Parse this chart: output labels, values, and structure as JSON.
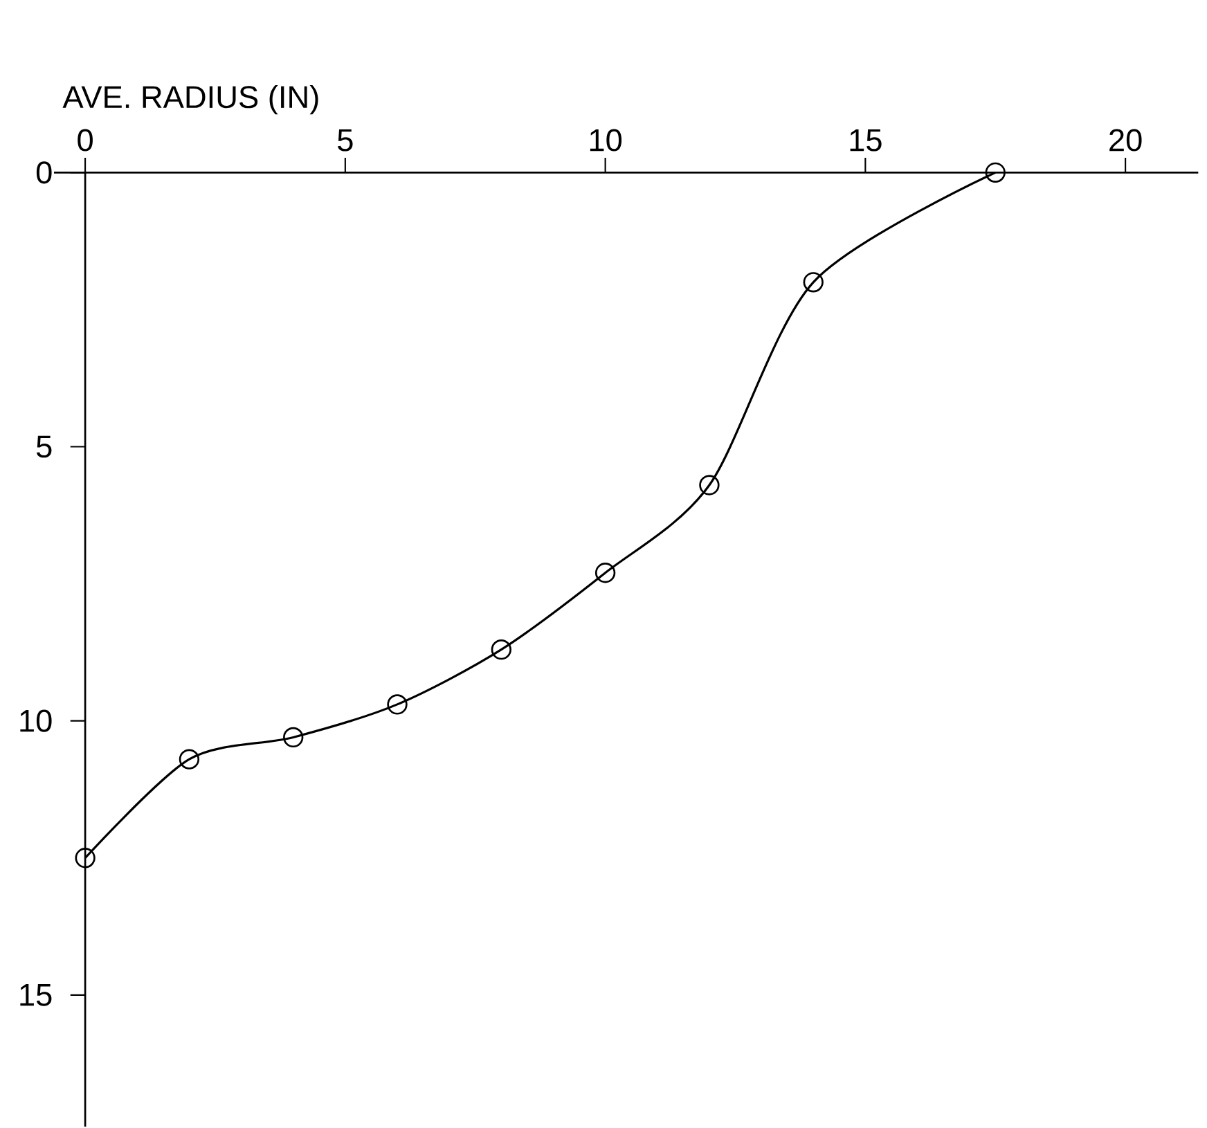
{
  "chart_data": {
    "type": "line",
    "xlabel": "AVE. RADIUS (IN)",
    "x": [
      0,
      2,
      4,
      6,
      8,
      10,
      12,
      14,
      17.5
    ],
    "values": [
      12.5,
      10.7,
      10.3,
      9.7,
      8.7,
      7.3,
      5.7,
      2.0,
      0
    ],
    "color": "#000000",
    "marker": "circle",
    "line_style": "solid",
    "grid": false,
    "xlim": [
      -0.6,
      21.4
    ],
    "ylim": [
      17.4,
      0
    ],
    "xticks": [
      0,
      5,
      10,
      15,
      20
    ],
    "yticks": [
      0,
      5,
      10,
      15
    ]
  }
}
